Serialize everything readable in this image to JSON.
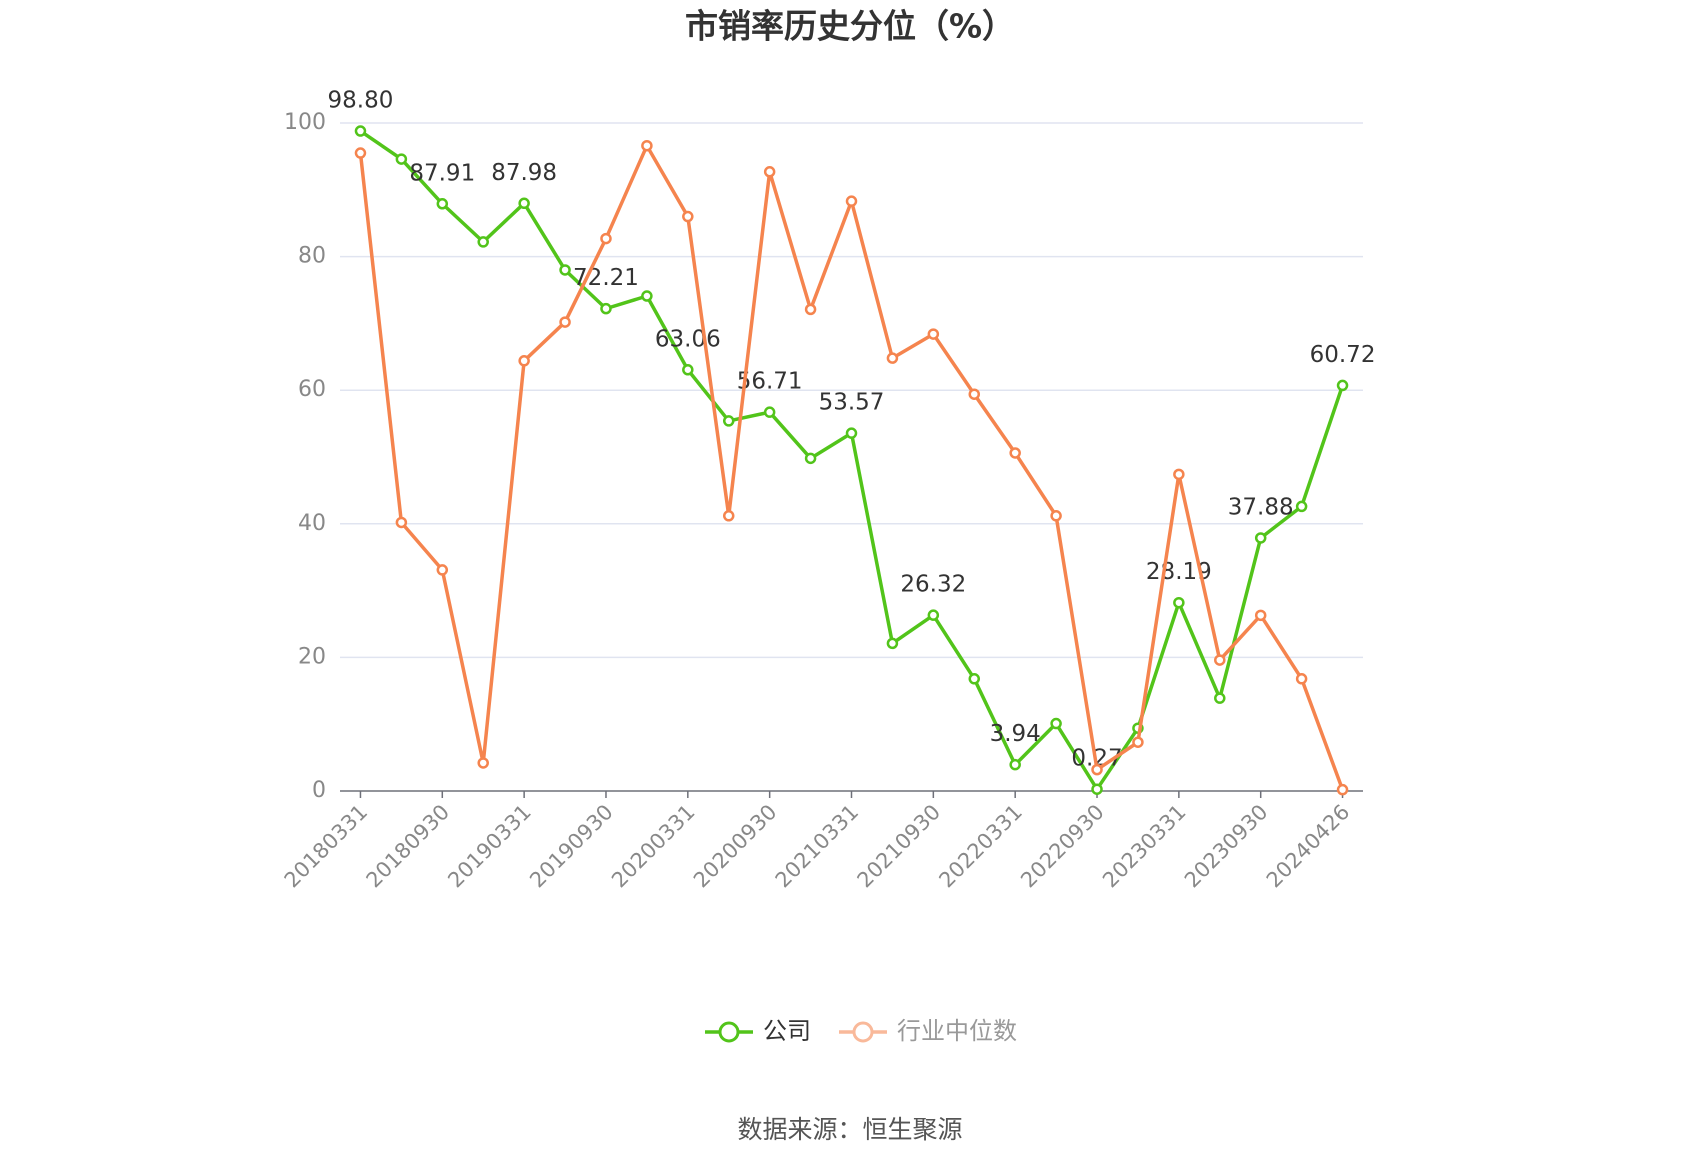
{
  "chart_data": {
    "type": "line",
    "title": "市销率历史分位（%）",
    "categories": [
      "20180331",
      null,
      "20180930",
      null,
      "20190331",
      null,
      "20190930",
      null,
      "20200331",
      null,
      "20200930",
      null,
      "20210331",
      null,
      "20210930",
      null,
      "20220331",
      null,
      "20220930",
      null,
      "20230331",
      null,
      "20230930",
      null,
      "20240426"
    ],
    "series": [
      {
        "name": "公司",
        "color": "#52c41a",
        "values": [
          98.8,
          94.6,
          87.91,
          82.2,
          87.98,
          78.0,
          72.21,
          74.1,
          63.06,
          55.4,
          56.71,
          49.8,
          53.57,
          22.1,
          26.32,
          16.8,
          3.94,
          10.1,
          0.27,
          9.4,
          28.19,
          13.9,
          37.88,
          42.6,
          60.72
        ],
        "value_labels": [
          "98.80",
          null,
          "87.91",
          null,
          "87.98",
          null,
          "72.21",
          null,
          "63.06",
          null,
          "56.71",
          null,
          "53.57",
          null,
          "26.32",
          null,
          "3.94",
          null,
          "0.27",
          null,
          "28.19",
          null,
          "37.88",
          null,
          "60.72"
        ]
      },
      {
        "name": "行业中位数",
        "color": "#f5844e",
        "values": [
          95.5,
          40.2,
          33.1,
          4.2,
          64.4,
          70.2,
          82.7,
          96.6,
          86.0,
          41.2,
          92.7,
          72.1,
          88.3,
          64.8,
          68.4,
          59.4,
          50.6,
          41.2,
          3.2,
          7.3,
          47.4,
          19.6,
          26.3,
          16.8,
          0.2
        ]
      }
    ],
    "ylim": [
      0,
      100
    ],
    "yticks": [
      0,
      20,
      40,
      60,
      80,
      100
    ],
    "grid": true,
    "legend": "bottom",
    "source": "数据来源：恒生聚源"
  }
}
